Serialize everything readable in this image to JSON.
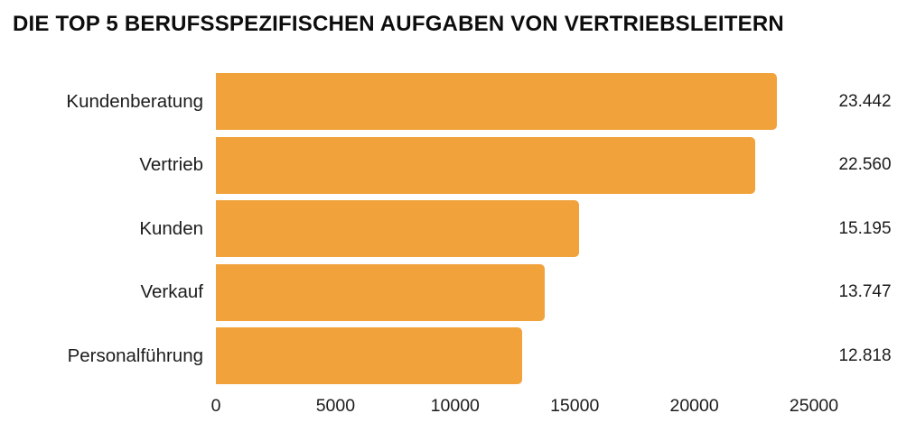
{
  "title": "DIE TOP 5 BERUFSSPEZIFISCHEN AUFGABEN VON VERTRIEBSLEITERN",
  "chart_data": {
    "type": "bar",
    "orientation": "horizontal",
    "title": "DIE TOP 5 BERUFSSPEZIFISCHEN AUFGABEN VON VERTRIEBSLEITERN",
    "categories": [
      "Kundenberatung",
      "Vertrieb",
      "Kunden",
      "Verkauf",
      "Personalführung"
    ],
    "values": [
      23442,
      22560,
      15195,
      13747,
      12818
    ],
    "value_labels": [
      "23.442",
      "22.560",
      "15.195",
      "13.747",
      "12.818"
    ],
    "x_ticks": [
      "0",
      "5000",
      "10000",
      "15000",
      "20000",
      "25000"
    ],
    "xlim": [
      0,
      25000
    ],
    "bar_color": "#F1A23B",
    "text_color": "#1c1c1c",
    "grid": false,
    "legend": false
  }
}
